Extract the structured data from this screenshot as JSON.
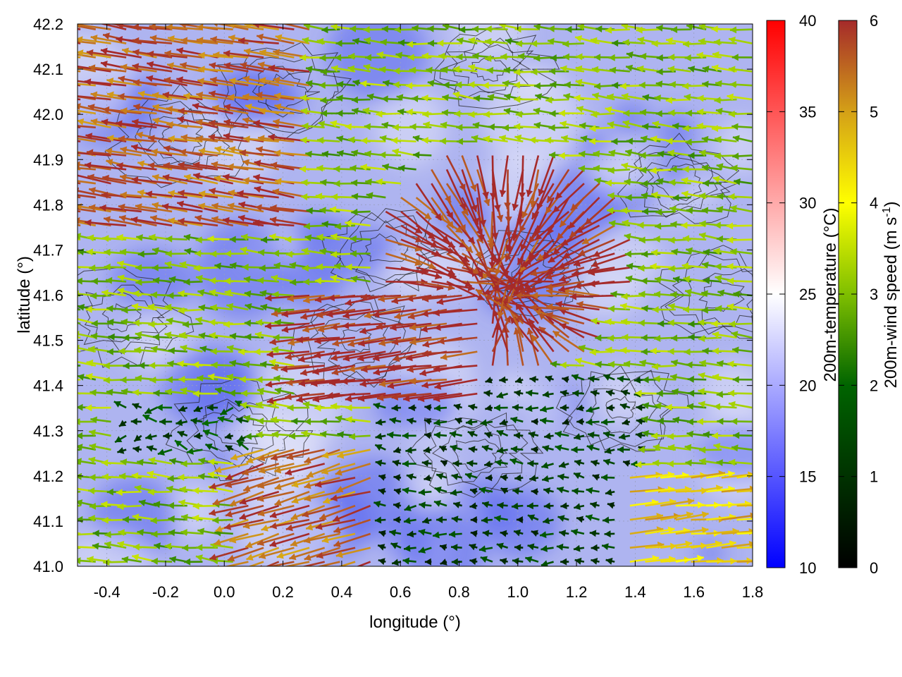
{
  "chart_data": {
    "type": "heatmap",
    "title": "",
    "xlabel": "longitude (°)",
    "ylabel": "latitude (°)",
    "xlim": [
      -0.5,
      1.8
    ],
    "ylim": [
      41.0,
      42.2
    ],
    "xticks": [
      "-0.4",
      "-0.2",
      "0.0",
      "0.2",
      "0.4",
      "0.6",
      "0.8",
      "1.0",
      "1.2",
      "1.4",
      "1.6",
      "1.8"
    ],
    "xtick_values": [
      -0.4,
      -0.2,
      0.0,
      0.2,
      0.4,
      0.6,
      0.8,
      1.0,
      1.2,
      1.4,
      1.6,
      1.8
    ],
    "yticks": [
      "41.0",
      "41.1",
      "41.2",
      "41.3",
      "41.4",
      "41.5",
      "41.6",
      "41.7",
      "41.8",
      "41.9",
      "42.0",
      "42.1",
      "42.2"
    ],
    "ytick_values": [
      41.0,
      41.1,
      41.2,
      41.3,
      41.4,
      41.5,
      41.6,
      41.7,
      41.8,
      41.9,
      42.0,
      42.1,
      42.2
    ],
    "grid": true,
    "temperature_colorbar": {
      "label": "200m-temperature (°C)",
      "range": [
        10,
        40
      ],
      "ticks": [
        "10",
        "15",
        "20",
        "25",
        "30",
        "35",
        "40"
      ],
      "tick_values": [
        10,
        15,
        20,
        25,
        30,
        35,
        40
      ],
      "colors": [
        "#0000ff",
        "#ffffff",
        "#ff0000"
      ]
    },
    "wind_colorbar": {
      "label_main": "200m-wind speed (m s",
      "label_sup": "-1",
      "label_end": ")",
      "range": [
        0,
        6
      ],
      "ticks": [
        "0",
        "1",
        "2",
        "3",
        "4",
        "5",
        "6"
      ],
      "tick_values": [
        0,
        1,
        2,
        3,
        4,
        5,
        6
      ],
      "colors": [
        "#000000",
        "#006400",
        "#7fbf00",
        "#ffff00",
        "#d4a017",
        "#c8781e",
        "#a52a2a"
      ]
    },
    "temperature_field_range_c": [
      14,
      24
    ],
    "wind_speed_range_ms": [
      0,
      6
    ],
    "wind_regions": [
      {
        "name": "strong easterly flow, north-west",
        "lon": [
          -0.5,
          0.3
        ],
        "lat": [
          41.8,
          42.2
        ],
        "speed": 6
      },
      {
        "name": "convergence zone",
        "lon": [
          0.6,
          1.3
        ],
        "lat": [
          41.5,
          41.9
        ],
        "speed": 6
      },
      {
        "name": "weak flow, south-east lowlands",
        "lon": [
          0.5,
          1.4
        ],
        "lat": [
          41.0,
          41.4
        ],
        "speed": 1
      },
      {
        "name": "westerly flow, south-east coast",
        "lon": [
          1.4,
          1.8
        ],
        "lat": [
          41.0,
          41.2
        ],
        "speed": 5
      }
    ]
  }
}
